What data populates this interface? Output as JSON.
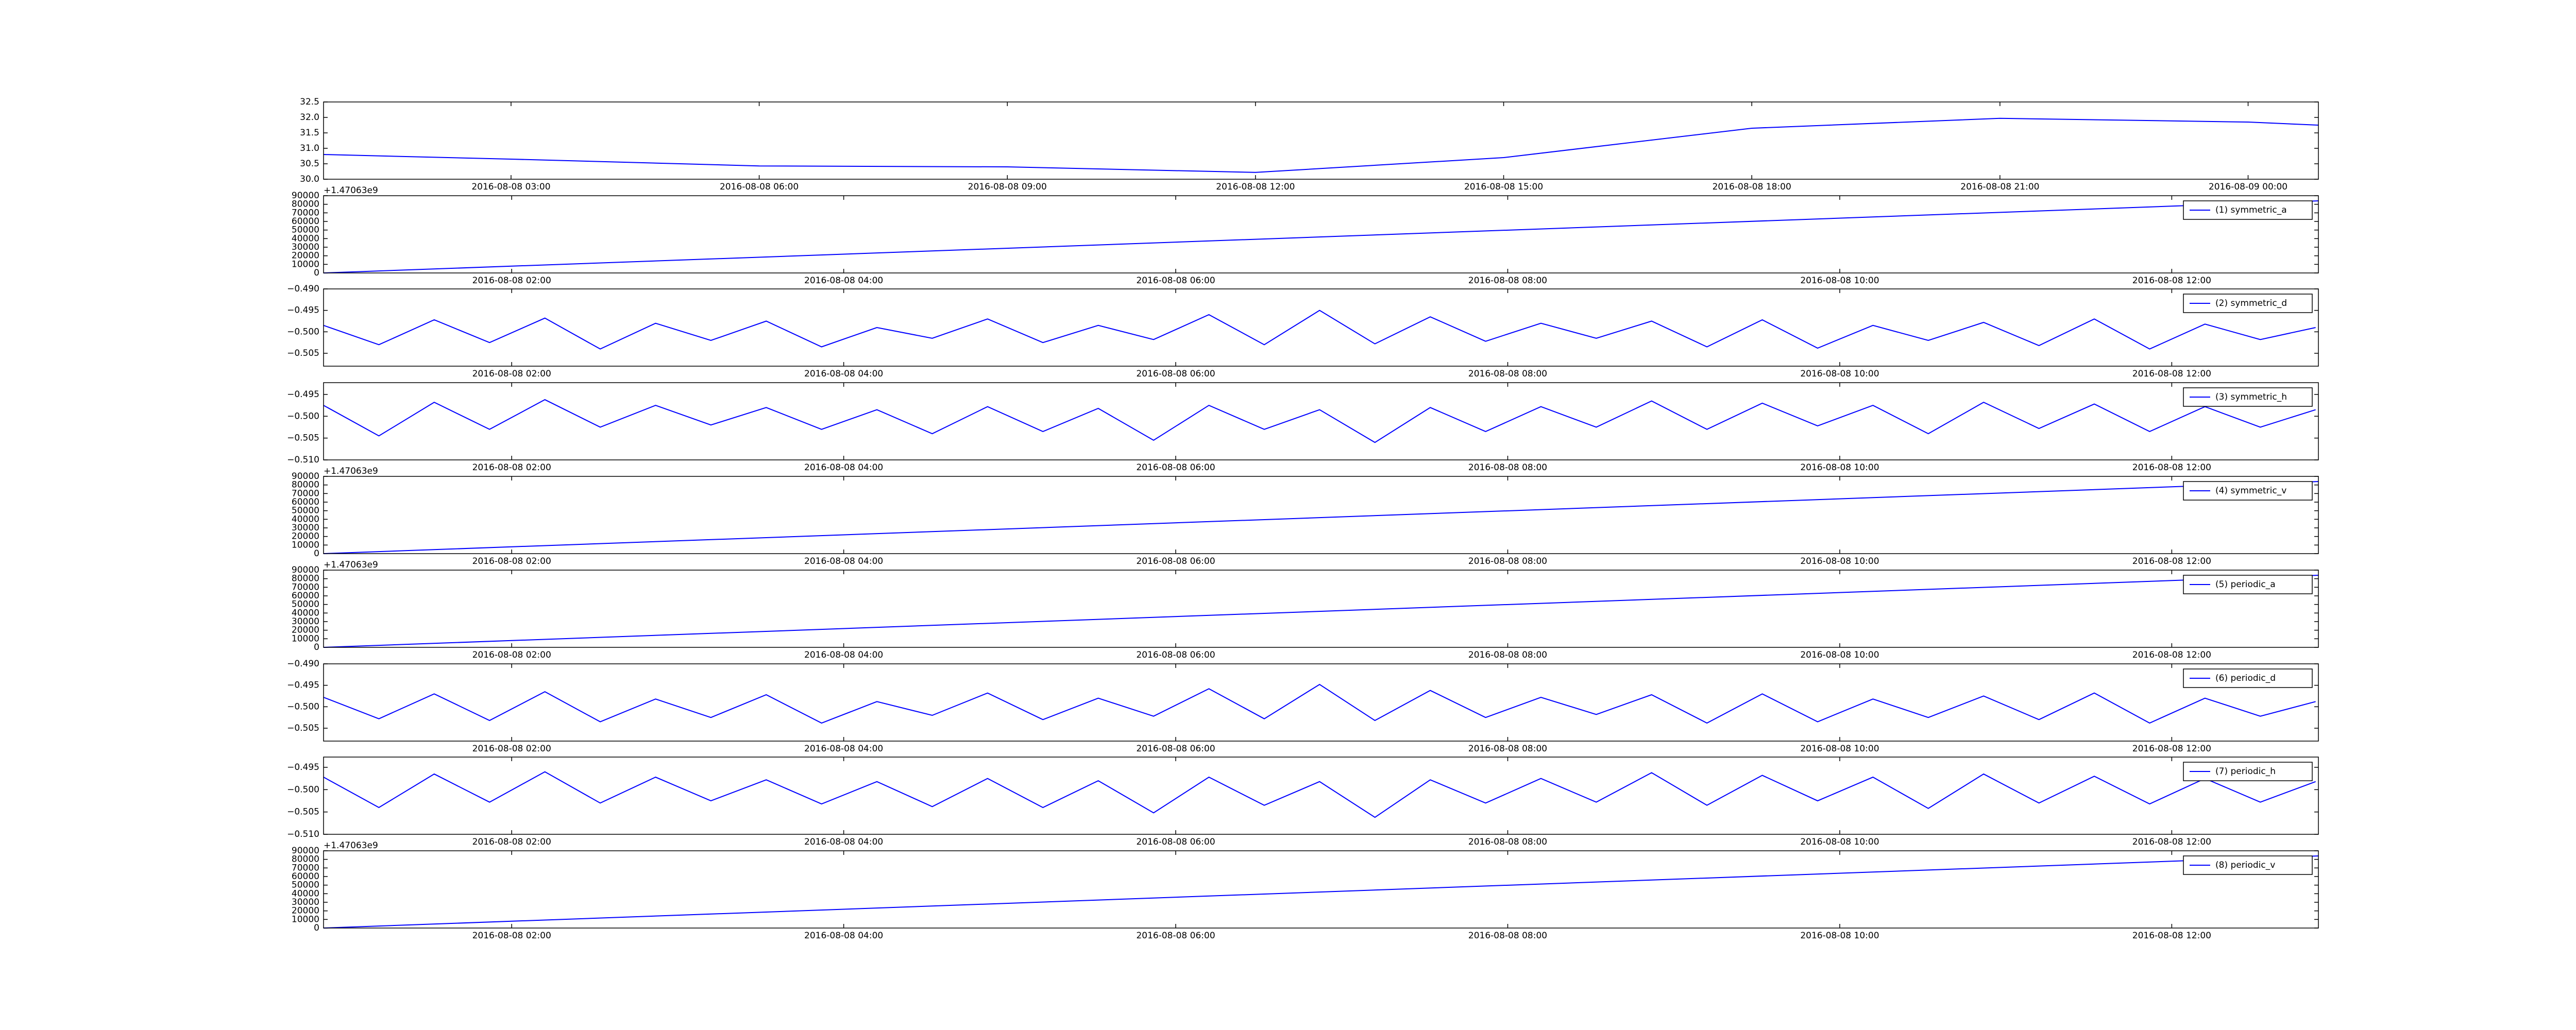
{
  "chart_data": [
    {
      "type": "line",
      "color": "#0000ff",
      "x": [
        "2016-08-08 00:44",
        "2016-08-08 03:00",
        "2016-08-08 06:00",
        "2016-08-08 09:00",
        "2016-08-08 12:00",
        "2016-08-08 15:00",
        "2016-08-08 18:00",
        "2016-08-08 21:00",
        "2016-08-09 00:00",
        "2016-08-09 00:51"
      ],
      "values": [
        30.8,
        30.65,
        30.43,
        30.4,
        30.22,
        30.7,
        31.65,
        31.97,
        31.85,
        31.75
      ],
      "xlim": [
        "2016-08-08 00:44",
        "2016-08-09 00:51"
      ],
      "xticks": [
        "2016-08-08 03:00",
        "2016-08-08 06:00",
        "2016-08-08 09:00",
        "2016-08-08 12:00",
        "2016-08-08 15:00",
        "2016-08-08 18:00",
        "2016-08-08 21:00",
        "2016-08-09 00:00"
      ],
      "ylim": [
        30.0,
        32.5
      ],
      "yticks": [
        {
          "value": 30.0,
          "label": "30.0"
        },
        {
          "value": 30.5,
          "label": "30.5"
        },
        {
          "value": 31.0,
          "label": "31.0"
        },
        {
          "value": 31.5,
          "label": "31.5"
        },
        {
          "value": 32.0,
          "label": "32.0"
        },
        {
          "value": 32.5,
          "label": "32.5"
        }
      ]
    },
    {
      "type": "line",
      "offset_text": "+1.47063e9",
      "legend": "upper right",
      "x": [
        "2016-08-08 00:52",
        "2016-08-08 12:53"
      ],
      "series": [
        {
          "name": "(1) symmetric_a",
          "color": "#0000ff",
          "values": [
            0,
            84000
          ]
        }
      ],
      "xlim": [
        "2016-08-08 00:52",
        "2016-08-08 12:53"
      ],
      "xticks": [
        "2016-08-08 02:00",
        "2016-08-08 04:00",
        "2016-08-08 06:00",
        "2016-08-08 08:00",
        "2016-08-08 10:00",
        "2016-08-08 12:00"
      ],
      "ylim": [
        0,
        90000
      ],
      "yticks": [
        0,
        10000,
        20000,
        30000,
        40000,
        50000,
        60000,
        70000,
        80000,
        90000
      ]
    },
    {
      "type": "line",
      "legend": "upper right",
      "x": [
        "2016-08-08 00:52",
        "2016-08-08 01:12",
        "2016-08-08 01:32",
        "2016-08-08 01:52",
        "2016-08-08 02:12",
        "2016-08-08 02:32",
        "2016-08-08 02:52",
        "2016-08-08 03:12",
        "2016-08-08 03:32",
        "2016-08-08 03:52",
        "2016-08-08 04:12",
        "2016-08-08 04:32",
        "2016-08-08 04:52",
        "2016-08-08 05:12",
        "2016-08-08 05:32",
        "2016-08-08 05:52",
        "2016-08-08 06:12",
        "2016-08-08 06:32",
        "2016-08-08 06:52",
        "2016-08-08 07:12",
        "2016-08-08 07:32",
        "2016-08-08 07:52",
        "2016-08-08 08:12",
        "2016-08-08 08:32",
        "2016-08-08 08:52",
        "2016-08-08 09:12",
        "2016-08-08 09:32",
        "2016-08-08 09:52",
        "2016-08-08 10:12",
        "2016-08-08 10:32",
        "2016-08-08 10:52",
        "2016-08-08 11:12",
        "2016-08-08 11:32",
        "2016-08-08 11:52",
        "2016-08-08 12:12",
        "2016-08-08 12:32",
        "2016-08-08 12:52"
      ],
      "series": [
        {
          "name": "(2) symmetric_d",
          "color": "#0000ff",
          "values": [
            -0.4985,
            -0.503,
            -0.4972,
            -0.5025,
            -0.4968,
            -0.504,
            -0.498,
            -0.502,
            -0.4975,
            -0.5035,
            -0.499,
            -0.5015,
            -0.497,
            -0.5025,
            -0.4985,
            -0.5018,
            -0.496,
            -0.503,
            -0.495,
            -0.5028,
            -0.4965,
            -0.5022,
            -0.498,
            -0.5015,
            -0.4975,
            -0.5035,
            -0.4972,
            -0.5038,
            -0.4985,
            -0.502,
            -0.4978,
            -0.5032,
            -0.497,
            -0.504,
            -0.4982,
            -0.5018,
            -0.499
          ]
        }
      ],
      "xlim": [
        "2016-08-08 00:52",
        "2016-08-08 12:53"
      ],
      "xticks": [
        "2016-08-08 02:00",
        "2016-08-08 04:00",
        "2016-08-08 06:00",
        "2016-08-08 08:00",
        "2016-08-08 10:00",
        "2016-08-08 12:00"
      ],
      "ylim": [
        -0.508,
        -0.49
      ],
      "yticks": [
        {
          "value": -0.505,
          "label": "−0.505"
        },
        {
          "value": -0.5,
          "label": "−0.500"
        },
        {
          "value": -0.495,
          "label": "−0.495"
        },
        {
          "value": -0.49,
          "label": "−0.490"
        }
      ]
    },
    {
      "type": "line",
      "legend": "upper right",
      "x": [
        "2016-08-08 00:52",
        "2016-08-08 01:12",
        "2016-08-08 01:32",
        "2016-08-08 01:52",
        "2016-08-08 02:12",
        "2016-08-08 02:32",
        "2016-08-08 02:52",
        "2016-08-08 03:12",
        "2016-08-08 03:32",
        "2016-08-08 03:52",
        "2016-08-08 04:12",
        "2016-08-08 04:32",
        "2016-08-08 04:52",
        "2016-08-08 05:12",
        "2016-08-08 05:32",
        "2016-08-08 05:52",
        "2016-08-08 06:12",
        "2016-08-08 06:32",
        "2016-08-08 06:52",
        "2016-08-08 07:12",
        "2016-08-08 07:32",
        "2016-08-08 07:52",
        "2016-08-08 08:12",
        "2016-08-08 08:32",
        "2016-08-08 08:52",
        "2016-08-08 09:12",
        "2016-08-08 09:32",
        "2016-08-08 09:52",
        "2016-08-08 10:12",
        "2016-08-08 10:32",
        "2016-08-08 10:52",
        "2016-08-08 11:12",
        "2016-08-08 11:32",
        "2016-08-08 11:52",
        "2016-08-08 12:12",
        "2016-08-08 12:32",
        "2016-08-08 12:52"
      ],
      "series": [
        {
          "name": "(3) symmetric_h",
          "color": "#0000ff",
          "values": [
            -0.4975,
            -0.5045,
            -0.4968,
            -0.503,
            -0.4962,
            -0.5025,
            -0.4975,
            -0.502,
            -0.498,
            -0.503,
            -0.4985,
            -0.504,
            -0.4978,
            -0.5035,
            -0.4982,
            -0.5055,
            -0.4975,
            -0.503,
            -0.4985,
            -0.506,
            -0.498,
            -0.5035,
            -0.4978,
            -0.5025,
            -0.4965,
            -0.503,
            -0.497,
            -0.5022,
            -0.4975,
            -0.504,
            -0.4968,
            -0.5028,
            -0.4972,
            -0.5035,
            -0.4978,
            -0.5025,
            -0.4985
          ]
        }
      ],
      "xlim": [
        "2016-08-08 00:52",
        "2016-08-08 12:53"
      ],
      "xticks": [
        "2016-08-08 02:00",
        "2016-08-08 04:00",
        "2016-08-08 06:00",
        "2016-08-08 08:00",
        "2016-08-08 10:00",
        "2016-08-08 12:00"
      ],
      "ylim": [
        -0.51,
        -0.4923
      ],
      "yticks": [
        {
          "value": -0.51,
          "label": "−0.510"
        },
        {
          "value": -0.505,
          "label": "−0.505"
        },
        {
          "value": -0.5,
          "label": "−0.500"
        },
        {
          "value": -0.495,
          "label": "−0.495"
        }
      ]
    },
    {
      "type": "line",
      "offset_text": "+1.47063e9",
      "legend": "upper right",
      "x": [
        "2016-08-08 00:52",
        "2016-08-08 12:53"
      ],
      "series": [
        {
          "name": "(4) symmetric_v",
          "color": "#0000ff",
          "values": [
            0,
            84000
          ]
        }
      ],
      "xlim": [
        "2016-08-08 00:52",
        "2016-08-08 12:53"
      ],
      "xticks": [
        "2016-08-08 02:00",
        "2016-08-08 04:00",
        "2016-08-08 06:00",
        "2016-08-08 08:00",
        "2016-08-08 10:00",
        "2016-08-08 12:00"
      ],
      "ylim": [
        0,
        90000
      ],
      "yticks": [
        0,
        10000,
        20000,
        30000,
        40000,
        50000,
        60000,
        70000,
        80000,
        90000
      ]
    },
    {
      "type": "line",
      "offset_text": "+1.47063e9",
      "legend": "upper right",
      "x": [
        "2016-08-08 00:52",
        "2016-08-08 12:53"
      ],
      "series": [
        {
          "name": "(5) periodic_a",
          "color": "#0000ff",
          "values": [
            0,
            84000
          ]
        }
      ],
      "xlim": [
        "2016-08-08 00:52",
        "2016-08-08 12:53"
      ],
      "xticks": [
        "2016-08-08 02:00",
        "2016-08-08 04:00",
        "2016-08-08 06:00",
        "2016-08-08 08:00",
        "2016-08-08 10:00",
        "2016-08-08 12:00"
      ],
      "ylim": [
        0,
        90000
      ],
      "yticks": [
        0,
        10000,
        20000,
        30000,
        40000,
        50000,
        60000,
        70000,
        80000,
        90000
      ]
    },
    {
      "type": "line",
      "legend": "upper right",
      "x": [
        "2016-08-08 00:52",
        "2016-08-08 01:12",
        "2016-08-08 01:32",
        "2016-08-08 01:52",
        "2016-08-08 02:12",
        "2016-08-08 02:32",
        "2016-08-08 02:52",
        "2016-08-08 03:12",
        "2016-08-08 03:32",
        "2016-08-08 03:52",
        "2016-08-08 04:12",
        "2016-08-08 04:32",
        "2016-08-08 04:52",
        "2016-08-08 05:12",
        "2016-08-08 05:32",
        "2016-08-08 05:52",
        "2016-08-08 06:12",
        "2016-08-08 06:32",
        "2016-08-08 06:52",
        "2016-08-08 07:12",
        "2016-08-08 07:32",
        "2016-08-08 07:52",
        "2016-08-08 08:12",
        "2016-08-08 08:32",
        "2016-08-08 08:52",
        "2016-08-08 09:12",
        "2016-08-08 09:32",
        "2016-08-08 09:52",
        "2016-08-08 10:12",
        "2016-08-08 10:32",
        "2016-08-08 10:52",
        "2016-08-08 11:12",
        "2016-08-08 11:32",
        "2016-08-08 11:52",
        "2016-08-08 12:12",
        "2016-08-08 12:32",
        "2016-08-08 12:52"
      ],
      "series": [
        {
          "name": "(6) periodic_d",
          "color": "#0000ff",
          "values": [
            -0.4978,
            -0.5028,
            -0.497,
            -0.5032,
            -0.4965,
            -0.5035,
            -0.4982,
            -0.5025,
            -0.4972,
            -0.5038,
            -0.4988,
            -0.502,
            -0.4968,
            -0.503,
            -0.498,
            -0.5022,
            -0.4958,
            -0.5028,
            -0.4948,
            -0.5032,
            -0.4962,
            -0.5025,
            -0.4978,
            -0.5018,
            -0.4972,
            -0.5038,
            -0.497,
            -0.5035,
            -0.4982,
            -0.5025,
            -0.4975,
            -0.503,
            -0.4968,
            -0.5038,
            -0.498,
            -0.5022,
            -0.4988
          ]
        }
      ],
      "xlim": [
        "2016-08-08 00:52",
        "2016-08-08 12:53"
      ],
      "xticks": [
        "2016-08-08 02:00",
        "2016-08-08 04:00",
        "2016-08-08 06:00",
        "2016-08-08 08:00",
        "2016-08-08 10:00",
        "2016-08-08 12:00"
      ],
      "ylim": [
        -0.508,
        -0.49
      ],
      "yticks": [
        {
          "value": -0.505,
          "label": "−0.505"
        },
        {
          "value": -0.5,
          "label": "−0.500"
        },
        {
          "value": -0.495,
          "label": "−0.495"
        },
        {
          "value": -0.49,
          "label": "−0.490"
        }
      ]
    },
    {
      "type": "line",
      "legend": "upper right",
      "x": [
        "2016-08-08 00:52",
        "2016-08-08 01:12",
        "2016-08-08 01:32",
        "2016-08-08 01:52",
        "2016-08-08 02:12",
        "2016-08-08 02:32",
        "2016-08-08 02:52",
        "2016-08-08 03:12",
        "2016-08-08 03:32",
        "2016-08-08 03:52",
        "2016-08-08 04:12",
        "2016-08-08 04:32",
        "2016-08-08 04:52",
        "2016-08-08 05:12",
        "2016-08-08 05:32",
        "2016-08-08 05:52",
        "2016-08-08 06:12",
        "2016-08-08 06:32",
        "2016-08-08 06:52",
        "2016-08-08 07:12",
        "2016-08-08 07:32",
        "2016-08-08 07:52",
        "2016-08-08 08:12",
        "2016-08-08 08:32",
        "2016-08-08 08:52",
        "2016-08-08 09:12",
        "2016-08-08 09:32",
        "2016-08-08 09:52",
        "2016-08-08 10:12",
        "2016-08-08 10:32",
        "2016-08-08 10:52",
        "2016-08-08 11:12",
        "2016-08-08 11:32",
        "2016-08-08 11:52",
        "2016-08-08 12:12",
        "2016-08-08 12:32",
        "2016-08-08 12:52"
      ],
      "series": [
        {
          "name": "(7) periodic_h",
          "color": "#0000ff",
          "values": [
            -0.4972,
            -0.504,
            -0.4965,
            -0.5028,
            -0.496,
            -0.503,
            -0.4972,
            -0.5025,
            -0.4978,
            -0.5032,
            -0.4982,
            -0.5038,
            -0.4975,
            -0.504,
            -0.498,
            -0.5052,
            -0.4972,
            -0.5035,
            -0.4982,
            -0.5062,
            -0.4978,
            -0.503,
            -0.4975,
            -0.5028,
            -0.4962,
            -0.5035,
            -0.4968,
            -0.5025,
            -0.4972,
            -0.5042,
            -0.4965,
            -0.503,
            -0.497,
            -0.5032,
            -0.4975,
            -0.5028,
            -0.4982
          ]
        }
      ],
      "xlim": [
        "2016-08-08 00:52",
        "2016-08-08 12:53"
      ],
      "xticks": [
        "2016-08-08 02:00",
        "2016-08-08 04:00",
        "2016-08-08 06:00",
        "2016-08-08 08:00",
        "2016-08-08 10:00",
        "2016-08-08 12:00"
      ],
      "ylim": [
        -0.51,
        -0.4927
      ],
      "yticks": [
        {
          "value": -0.51,
          "label": "−0.510"
        },
        {
          "value": -0.505,
          "label": "−0.505"
        },
        {
          "value": -0.5,
          "label": "−0.500"
        },
        {
          "value": -0.495,
          "label": "−0.495"
        }
      ]
    },
    {
      "type": "line",
      "offset_text": "+1.47063e9",
      "legend": "upper right",
      "x": [
        "2016-08-08 00:52",
        "2016-08-08 12:53"
      ],
      "series": [
        {
          "name": "(8) periodic_v",
          "color": "#0000ff",
          "values": [
            0,
            84000
          ]
        }
      ],
      "xlim": [
        "2016-08-08 00:52",
        "2016-08-08 12:53"
      ],
      "xticks": [
        "2016-08-08 02:00",
        "2016-08-08 04:00",
        "2016-08-08 06:00",
        "2016-08-08 08:00",
        "2016-08-08 10:00",
        "2016-08-08 12:00"
      ],
      "ylim": [
        0,
        90000
      ],
      "yticks": [
        0,
        10000,
        20000,
        30000,
        40000,
        50000,
        60000,
        70000,
        80000,
        90000
      ]
    }
  ]
}
